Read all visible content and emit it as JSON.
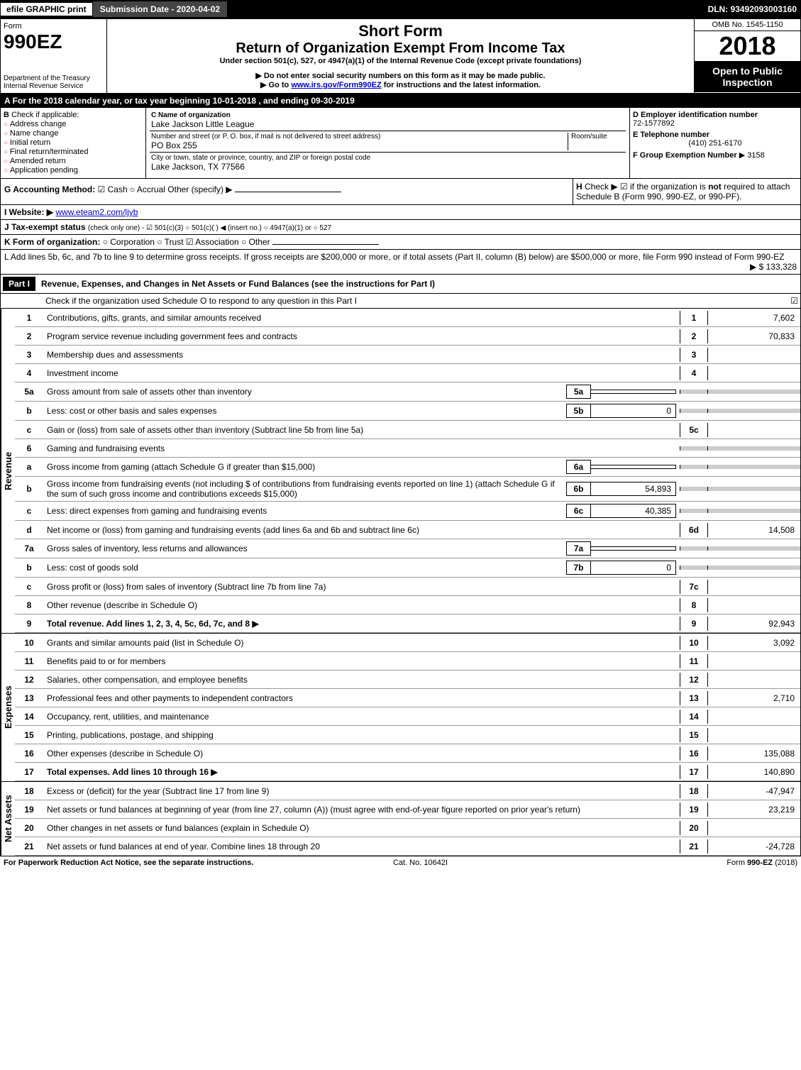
{
  "top": {
    "efile": "efile GRAPHIC print",
    "submission": "Submission Date - 2020-04-02",
    "dln": "DLN: 93492093003160"
  },
  "header": {
    "form_word": "Form",
    "form_num": "990EZ",
    "dept": "Department of the Treasury",
    "irs": "Internal Revenue Service",
    "short_form": "Short Form",
    "title": "Return of Organization Exempt From Income Tax",
    "subtitle": "Under section 501(c), 527, or 4947(a)(1) of the Internal Revenue Code (except private foundations)",
    "notice1": "▶ Do not enter social security numbers on this form as it may be made public.",
    "notice2_pre": "▶ Go to ",
    "notice2_link": "www.irs.gov/Form990EZ",
    "notice2_post": " for instructions and the latest information.",
    "omb": "OMB No. 1545-1150",
    "year": "2018",
    "open": "Open to Public Inspection"
  },
  "period": {
    "text": "A  For the 2018 calendar year, or tax year beginning 10-01-2018              , and ending 09-30-2019"
  },
  "box_b": {
    "title": "B",
    "label": "Check if applicable:",
    "opts": [
      "Address change",
      "Name change",
      "Initial return",
      "Final return/terminated",
      "Amended return",
      "Application pending"
    ]
  },
  "box_c": {
    "c_label": "C Name of organization",
    "c_val": "Lake Jackson Little League",
    "addr_label": "Number and street (or P. O. box, if mail is not delivered to street address)",
    "addr_val": "PO Box 255",
    "room_label": "Room/suite",
    "city_label": "City or town, state or province, country, and ZIP or foreign postal code",
    "city_val": "Lake Jackson, TX  77566"
  },
  "box_d": {
    "d_label": "D Employer identification number",
    "d_val": "72-1577892",
    "e_label": "E Telephone number",
    "e_val": "(410) 251-6170",
    "f_label": "F Group Exemption Number",
    "f_val": "▶ 3158"
  },
  "g": {
    "label": "G Accounting Method:",
    "cash": "☑ Cash",
    "accrual": "○ Accrual",
    "other": "Other (specify) ▶"
  },
  "h": {
    "label": "H",
    "text": "Check ▶ ☑ if the organization is ",
    "not": "not",
    "text2": " required to attach Schedule B (Form 990, 990-EZ, or 990-PF)."
  },
  "i": {
    "label": "I Website: ▶",
    "val": "www.eteam2.com/ljyb"
  },
  "j": {
    "label": "J Tax-exempt status",
    "text": " (check only one) - ☑ 501(c)(3) ○ 501(c)(  ) ◀ (insert no.) ○ 4947(a)(1) or ○ 527"
  },
  "k": {
    "label": "K Form of organization:",
    "text": "○ Corporation  ○ Trust  ☑ Association  ○ Other"
  },
  "l": {
    "text": "L Add lines 5b, 6c, and 7b to line 9 to determine gross receipts. If gross receipts are $200,000 or more, or if total assets (Part II, column (B) below) are $500,000 or more, file Form 990 instead of Form 990-EZ",
    "val": "▶ $ 133,328"
  },
  "part1": {
    "label": "Part I",
    "title": "Revenue, Expenses, and Changes in Net Assets or Fund Balances (see the instructions for Part I)",
    "check": "Check if the organization used Schedule O to respond to any question in this Part I",
    "check_val": "☑"
  },
  "sections": {
    "revenue": "Revenue",
    "expenses": "Expenses",
    "netassets": "Net Assets"
  },
  "lines": [
    {
      "n": "1",
      "t": "Contributions, gifts, grants, and similar amounts received",
      "box": "1",
      "v": "7,602"
    },
    {
      "n": "2",
      "t": "Program service revenue including government fees and contracts",
      "box": "2",
      "v": "70,833"
    },
    {
      "n": "3",
      "t": "Membership dues and assessments",
      "box": "3",
      "v": ""
    },
    {
      "n": "4",
      "t": "Investment income",
      "box": "4",
      "v": ""
    },
    {
      "n": "5a",
      "t": "Gross amount from sale of assets other than inventory",
      "ibox": "5a",
      "iv": "",
      "grey": true
    },
    {
      "n": "b",
      "t": "Less: cost or other basis and sales expenses",
      "ibox": "5b",
      "iv": "0",
      "grey": true
    },
    {
      "n": "c",
      "t": "Gain or (loss) from sale of assets other than inventory (Subtract line 5b from line 5a)",
      "box": "5c",
      "v": ""
    },
    {
      "n": "6",
      "t": "Gaming and fundraising events",
      "grey": true
    },
    {
      "n": "a",
      "t": "Gross income from gaming (attach Schedule G if greater than $15,000)",
      "ibox": "6a",
      "iv": "",
      "grey": true
    },
    {
      "n": "b",
      "t": "Gross income from fundraising events (not including $                    of contributions from fundraising events reported on line 1) (attach Schedule G if the sum of such gross income and contributions exceeds $15,000)",
      "ibox": "6b",
      "iv": "54,893",
      "grey": true
    },
    {
      "n": "c",
      "t": "Less: direct expenses from gaming and fundraising events",
      "ibox": "6c",
      "iv": "40,385",
      "grey": true
    },
    {
      "n": "d",
      "t": "Net income or (loss) from gaming and fundraising events (add lines 6a and 6b and subtract line 6c)",
      "box": "6d",
      "v": "14,508"
    },
    {
      "n": "7a",
      "t": "Gross sales of inventory, less returns and allowances",
      "ibox": "7a",
      "iv": "",
      "grey": true
    },
    {
      "n": "b",
      "t": "Less: cost of goods sold",
      "ibox": "7b",
      "iv": "0",
      "grey": true
    },
    {
      "n": "c",
      "t": "Gross profit or (loss) from sales of inventory (Subtract line 7b from line 7a)",
      "box": "7c",
      "v": ""
    },
    {
      "n": "8",
      "t": "Other revenue (describe in Schedule O)",
      "box": "8",
      "v": ""
    },
    {
      "n": "9",
      "t": "Total revenue. Add lines 1, 2, 3, 4, 5c, 6d, 7c, and 8",
      "box": "9",
      "v": "92,943",
      "bold": true,
      "arrow": true
    }
  ],
  "exp_lines": [
    {
      "n": "10",
      "t": "Grants and similar amounts paid (list in Schedule O)",
      "box": "10",
      "v": "3,092"
    },
    {
      "n": "11",
      "t": "Benefits paid to or for members",
      "box": "11",
      "v": ""
    },
    {
      "n": "12",
      "t": "Salaries, other compensation, and employee benefits",
      "box": "12",
      "v": ""
    },
    {
      "n": "13",
      "t": "Professional fees and other payments to independent contractors",
      "box": "13",
      "v": "2,710"
    },
    {
      "n": "14",
      "t": "Occupancy, rent, utilities, and maintenance",
      "box": "14",
      "v": ""
    },
    {
      "n": "15",
      "t": "Printing, publications, postage, and shipping",
      "box": "15",
      "v": ""
    },
    {
      "n": "16",
      "t": "Other expenses (describe in Schedule O)",
      "box": "16",
      "v": "135,088"
    },
    {
      "n": "17",
      "t": "Total expenses. Add lines 10 through 16",
      "box": "17",
      "v": "140,890",
      "bold": true,
      "arrow": true
    }
  ],
  "na_lines": [
    {
      "n": "18",
      "t": "Excess or (deficit) for the year (Subtract line 17 from line 9)",
      "box": "18",
      "v": "-47,947"
    },
    {
      "n": "19",
      "t": "Net assets or fund balances at beginning of year (from line 27, column (A)) (must agree with end-of-year figure reported on prior year's return)",
      "box": "19",
      "v": "23,219"
    },
    {
      "n": "20",
      "t": "Other changes in net assets or fund balances (explain in Schedule O)",
      "box": "20",
      "v": ""
    },
    {
      "n": "21",
      "t": "Net assets or fund balances at end of year. Combine lines 18 through 20",
      "box": "21",
      "v": "-24,728"
    }
  ],
  "footer": {
    "left": "For Paperwork Reduction Act Notice, see the separate instructions.",
    "mid": "Cat. No. 10642I",
    "right": "Form 990-EZ (2018)"
  }
}
